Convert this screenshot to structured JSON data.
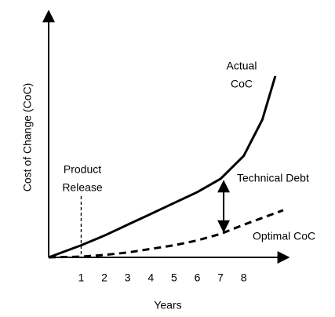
{
  "chart_data": {
    "type": "line",
    "x_label": "Years",
    "y_label": "Cost of Change (CoC)",
    "xlim": [
      -0.4,
      9.7
    ],
    "ylim": [
      0,
      100
    ],
    "xticks": [
      1,
      2,
      3,
      4,
      5,
      6,
      7,
      8
    ],
    "series": [
      {
        "color": "#000000",
        "dash": false,
        "x": [
          -0.4,
          1,
          2,
          3,
          4,
          5,
          6,
          7,
          8,
          8.8,
          9.36
        ],
        "values": [
          0,
          5,
          9,
          13.5,
          18,
          22.5,
          27,
          32.5,
          42,
          57,
          75
        ]
      },
      {
        "color": "#000000",
        "dash": true,
        "x": [
          -0.4,
          1,
          2,
          3,
          4,
          5,
          6,
          7,
          8,
          9.7
        ],
        "values": [
          0,
          0.3,
          1,
          2,
          3.5,
          5,
          7,
          9.7,
          13.5,
          19.5
        ]
      }
    ],
    "annotations": [
      "Actual",
      "CoC",
      "Technical Debt",
      "Optimal CoC",
      "Product",
      "Release"
    ]
  }
}
